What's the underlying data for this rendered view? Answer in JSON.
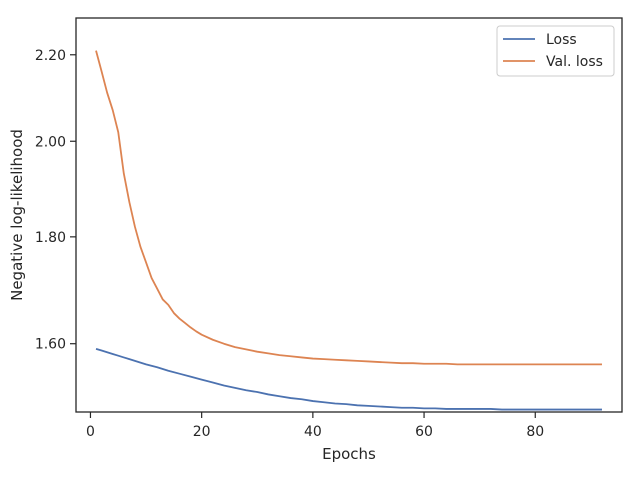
{
  "chart_data": {
    "type": "line",
    "title": "",
    "xlabel": "Epochs",
    "ylabel": "Negative log-likelihood",
    "xlim": [
      -2.6,
      95.6
    ],
    "ylim": [
      1.484,
      2.291
    ],
    "y_scale": "log",
    "x_ticks": [
      0,
      20,
      40,
      60,
      80
    ],
    "x_tick_labels": [
      "0",
      "20",
      "40",
      "60",
      "80"
    ],
    "y_ticks": [
      1.6,
      1.8,
      2.0,
      2.2
    ],
    "y_tick_labels": [
      "1.60",
      "1.80",
      "2.00",
      "2.20"
    ],
    "grid": false,
    "legend_position": "top-right",
    "series": [
      {
        "name": "Loss",
        "color": "#4c72b0",
        "x": [
          1,
          2,
          3,
          4,
          5,
          6,
          7,
          8,
          9,
          10,
          12,
          14,
          16,
          18,
          20,
          22,
          24,
          26,
          28,
          30,
          32,
          34,
          36,
          38,
          40,
          42,
          44,
          46,
          48,
          50,
          52,
          54,
          56,
          58,
          60,
          62,
          64,
          66,
          68,
          70,
          72,
          74,
          76,
          78,
          80,
          82,
          84,
          86,
          88,
          90,
          92
        ],
        "y": [
          1.591,
          1.588,
          1.585,
          1.582,
          1.579,
          1.576,
          1.573,
          1.57,
          1.567,
          1.564,
          1.559,
          1.553,
          1.548,
          1.543,
          1.538,
          1.533,
          1.528,
          1.524,
          1.52,
          1.517,
          1.513,
          1.51,
          1.507,
          1.505,
          1.502,
          1.5,
          1.498,
          1.497,
          1.495,
          1.494,
          1.493,
          1.492,
          1.491,
          1.491,
          1.49,
          1.49,
          1.489,
          1.489,
          1.489,
          1.489,
          1.489,
          1.488,
          1.488,
          1.488,
          1.488,
          1.488,
          1.488,
          1.488,
          1.488,
          1.488,
          1.488
        ]
      },
      {
        "name": "Val. loss",
        "color": "#dd8452",
        "x": [
          1,
          2,
          3,
          4,
          5,
          6,
          7,
          8,
          9,
          10,
          11,
          12,
          13,
          14,
          15,
          16,
          17,
          18,
          19,
          20,
          22,
          24,
          26,
          28,
          30,
          32,
          34,
          36,
          38,
          40,
          42,
          44,
          46,
          48,
          50,
          52,
          54,
          56,
          58,
          60,
          62,
          64,
          66,
          68,
          70,
          72,
          74,
          76,
          78,
          80,
          82,
          84,
          86,
          88,
          90,
          92
        ],
        "y": [
          2.21,
          2.16,
          2.11,
          2.07,
          2.02,
          1.93,
          1.87,
          1.82,
          1.78,
          1.75,
          1.72,
          1.7,
          1.68,
          1.67,
          1.655,
          1.645,
          1.637,
          1.629,
          1.622,
          1.616,
          1.607,
          1.6,
          1.594,
          1.59,
          1.586,
          1.583,
          1.58,
          1.578,
          1.576,
          1.574,
          1.573,
          1.572,
          1.571,
          1.57,
          1.569,
          1.568,
          1.567,
          1.566,
          1.566,
          1.565,
          1.565,
          1.565,
          1.564,
          1.564,
          1.564,
          1.564,
          1.564,
          1.564,
          1.564,
          1.564,
          1.564,
          1.564,
          1.564,
          1.564,
          1.564,
          1.564
        ]
      }
    ]
  }
}
